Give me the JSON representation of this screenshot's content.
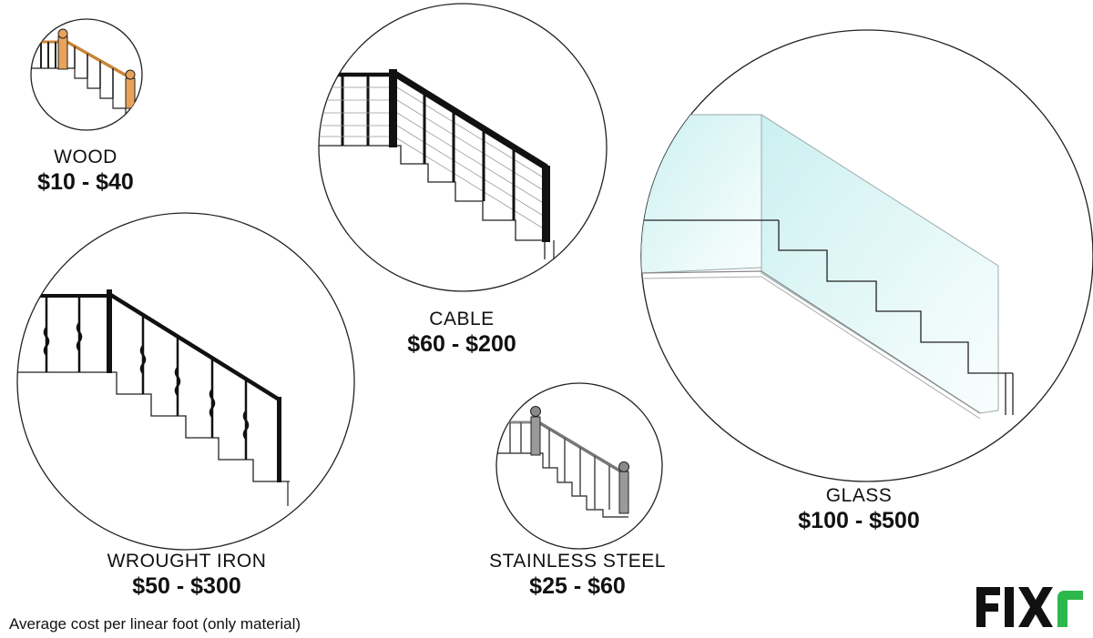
{
  "materials": [
    {
      "id": "wood",
      "name": "WOOD",
      "price": "$10 - $40",
      "icon": "wood-staircase-icon",
      "color": "#e8a25a"
    },
    {
      "id": "cable",
      "name": "CABLE",
      "price": "$60 - $200",
      "icon": "cable-staircase-icon",
      "color": "#111111"
    },
    {
      "id": "wrought-iron",
      "name": "WROUGHT IRON",
      "price": "$50 - $300",
      "icon": "wrought-iron-staircase-icon",
      "color": "#111111"
    },
    {
      "id": "stainless-steel",
      "name": "STAINLESS STEEL",
      "price": "$25 - $60",
      "icon": "stainless-steel-staircase-icon",
      "color": "#9a9a9a"
    },
    {
      "id": "glass",
      "name": "GLASS",
      "price": "$100 - $500",
      "icon": "glass-staircase-icon",
      "color": "#bfe9ea"
    }
  ],
  "footnote": "Average cost per linear foot (only material)",
  "logo": {
    "text": "FIXr",
    "color": "#111111",
    "accent": "#2db84b"
  }
}
